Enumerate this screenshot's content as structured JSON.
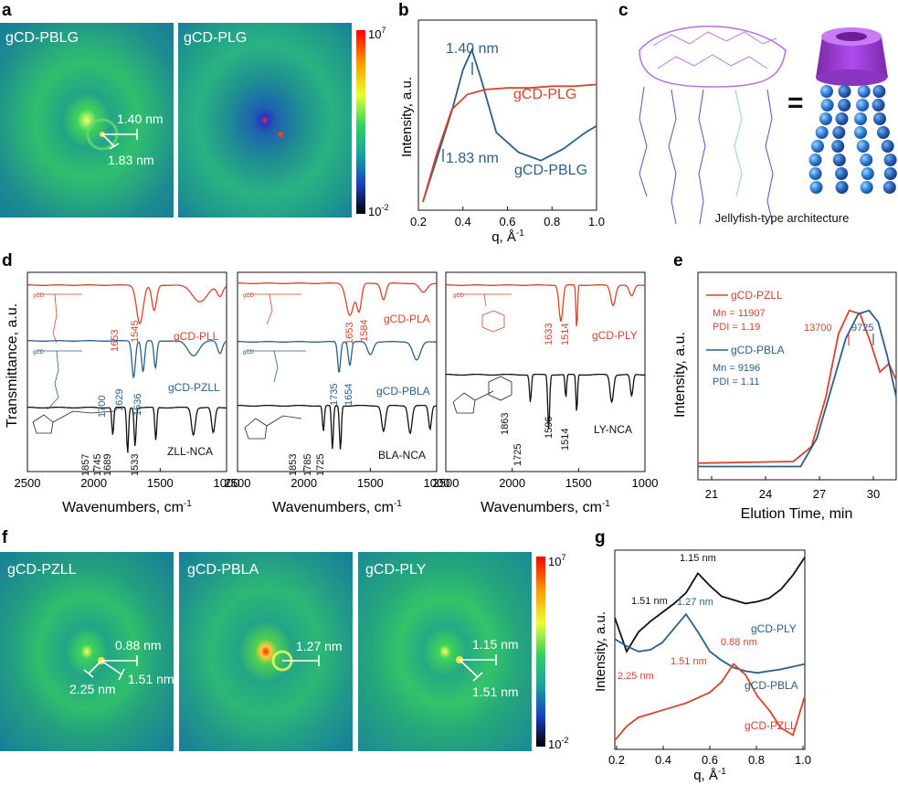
{
  "panels": {
    "a": {
      "letter": "a",
      "images": [
        "gCD-PBLG",
        "gCD-PLG"
      ],
      "annotations": [
        "1.40 nm",
        "1.83 nm"
      ],
      "colorbar": {
        "top": "10",
        "top_exp": "7",
        "bottom": "10",
        "bottom_exp": "-2"
      }
    },
    "b": {
      "letter": "b",
      "ylabel": "Intensity, a.u.",
      "xlabel_main": "q, Å",
      "xlabel_exp": "-1",
      "xticks": [
        "0.2",
        "0.4",
        "0.6",
        "0.8",
        "1.0"
      ],
      "annotations": [
        "1.40 nm",
        "1.83 nm"
      ],
      "series_labels": [
        "gCD-PLG",
        "gCD-PBLG"
      ]
    },
    "c": {
      "letter": "c",
      "equals": "=",
      "caption": "Jellyfish-type architecture"
    },
    "d": {
      "letter": "d",
      "ylabel": "Transmittance, a.u.",
      "xlabel_main": "Wavenumbers, cm",
      "xlabel_exp": "-1",
      "xticks": [
        "2500",
        "2000",
        "1500",
        "1000"
      ],
      "sub1": {
        "labels": [
          "gCD-PLL",
          "gCD-PZLL",
          "ZLL-NCA"
        ],
        "peaks_red": [
          "1653",
          "1545"
        ],
        "peaks_blue": [
          "1700",
          "1629",
          "1536"
        ],
        "peaks_black": [
          "1857",
          "1745",
          "1689",
          "1533"
        ]
      },
      "sub2": {
        "labels": [
          "gCD-PLA",
          "gCD-PBLA",
          "BLA-NCA"
        ],
        "peaks_red": [
          "1653",
          "1584"
        ],
        "peaks_blue": [
          "1735",
          "1654"
        ],
        "peaks_black": [
          "1853",
          "1785",
          "1725"
        ]
      },
      "sub3": {
        "labels": [
          "gCD-PLY",
          "LY-NCA"
        ],
        "peaks_red": [
          "1633",
          "1514"
        ],
        "peaks_black": [
          "1863",
          "1725",
          "1596",
          "1514"
        ]
      }
    },
    "e": {
      "letter": "e",
      "ylabel": "Intensity, a.u.",
      "xlabel": "Elution Time, min",
      "xticks": [
        "21",
        "24",
        "27",
        "30"
      ],
      "legend": [
        {
          "name": "gCD-PZLL",
          "mn": "Mn = 11907",
          "pdi": "PDI = 1.19"
        },
        {
          "name": "gCD-PBLA",
          "mn": "Mn = 9196",
          "pdi": "PDI = 1.11"
        }
      ],
      "peak_labels": [
        "13700",
        "9725"
      ]
    },
    "f": {
      "letter": "f",
      "images": [
        "gCD-PZLL",
        "gCD-PBLA",
        "gCD-PLY"
      ],
      "annotations": {
        "pzll": [
          "0.88 nm",
          "1.51 nm",
          "2.25 nm"
        ],
        "pbla": [
          "1.27 nm"
        ],
        "ply": [
          "1.15 nm",
          "1.51 nm"
        ]
      },
      "colorbar": {
        "top": "10",
        "top_exp": "7",
        "bottom": "10",
        "bottom_exp": "-2"
      }
    },
    "g": {
      "letter": "g",
      "ylabel": "Intensity, a.u.",
      "xlabel_main": "q, Å",
      "xlabel_exp": "-1",
      "xticks": [
        "0.2",
        "0.4",
        "0.6",
        "0.8",
        "1.0"
      ],
      "annotations": [
        "1.15 nm",
        "1.51 nm",
        "1.27 nm",
        "0.88 nm",
        "1.51 nm",
        "2.25 nm"
      ],
      "series_labels": [
        "gCD-PLY",
        "gCD-PBLA",
        "gCD-PZLL"
      ]
    }
  },
  "colors": {
    "red": "#d4452c",
    "blue": "#2b5f8a",
    "black": "#111111",
    "saxs_bg": "#1f9a86",
    "purple": "#9b3fd6"
  },
  "chart_data": [
    {
      "type": "line",
      "panel": "b",
      "xlabel": "q, Å-1",
      "ylabel": "Intensity, a.u.",
      "xlim": [
        0.2,
        1.0
      ],
      "series": [
        {
          "name": "gCD-PBLG",
          "x": [
            0.22,
            0.28,
            0.35,
            0.4,
            0.44,
            0.48,
            0.55,
            0.65,
            0.75,
            0.85,
            0.95,
            1.0
          ],
          "y": [
            0.0,
            0.25,
            0.55,
            0.8,
            0.92,
            0.75,
            0.42,
            0.3,
            0.25,
            0.32,
            0.42,
            0.46
          ]
        },
        {
          "name": "gCD-PLG",
          "x": [
            0.22,
            0.28,
            0.35,
            0.42,
            0.5,
            0.6,
            0.7,
            0.8,
            0.9,
            1.0
          ],
          "y": [
            0.0,
            0.28,
            0.56,
            0.65,
            0.68,
            0.69,
            0.69,
            0.7,
            0.7,
            0.71
          ]
        }
      ]
    },
    {
      "type": "line",
      "panel": "e",
      "xlabel": "Elution Time, min",
      "ylabel": "Intensity, a.u.",
      "xlim": [
        20.2,
        31.2
      ],
      "series": [
        {
          "name": "gCD-PZLL",
          "x": [
            20.2,
            25.5,
            26.5,
            27.3,
            28.0,
            28.6,
            29.2,
            29.8,
            30.3,
            30.8,
            31.2
          ],
          "y": [
            0.0,
            0.01,
            0.1,
            0.4,
            0.78,
            0.92,
            0.9,
            0.72,
            0.55,
            0.6,
            0.5
          ]
        },
        {
          "name": "gCD-PBLA",
          "x": [
            20.2,
            25.9,
            26.8,
            27.6,
            28.4,
            29.1,
            29.7,
            30.2,
            30.7,
            31.2
          ],
          "y": [
            -0.02,
            -0.02,
            0.15,
            0.45,
            0.75,
            0.9,
            0.92,
            0.85,
            0.65,
            0.4
          ]
        }
      ]
    },
    {
      "type": "line",
      "panel": "g",
      "xlabel": "q, Å-1",
      "ylabel": "Intensity, a.u.",
      "xlim": [
        0.2,
        1.0
      ],
      "series": [
        {
          "name": "gCD-PLY",
          "x": [
            0.2,
            0.25,
            0.3,
            0.35,
            0.4,
            0.45,
            0.5,
            0.55,
            0.6,
            0.65,
            0.7,
            0.75,
            0.8,
            0.85,
            0.9,
            0.95,
            1.0
          ],
          "y": [
            0.74,
            0.55,
            0.66,
            0.72,
            0.77,
            0.82,
            0.88,
            0.99,
            0.92,
            0.86,
            0.84,
            0.82,
            0.83,
            0.85,
            0.9,
            0.98,
            1.08
          ]
        },
        {
          "name": "gCD-PBLA",
          "x": [
            0.2,
            0.25,
            0.3,
            0.35,
            0.4,
            0.45,
            0.5,
            0.55,
            0.6,
            0.65,
            0.7,
            0.75,
            0.8,
            0.9,
            1.0
          ],
          "y": [
            0.62,
            0.58,
            0.55,
            0.56,
            0.6,
            0.68,
            0.76,
            0.66,
            0.55,
            0.5,
            0.46,
            0.44,
            0.43,
            0.45,
            0.48
          ]
        },
        {
          "name": "gCD-PZLL",
          "x": [
            0.2,
            0.25,
            0.3,
            0.35,
            0.4,
            0.45,
            0.5,
            0.55,
            0.6,
            0.65,
            0.7,
            0.75,
            0.8,
            0.85,
            0.9,
            0.95,
            1.0
          ],
          "y": [
            0.05,
            0.13,
            0.18,
            0.2,
            0.22,
            0.24,
            0.26,
            0.29,
            0.32,
            0.38,
            0.48,
            0.42,
            0.3,
            0.22,
            0.12,
            0.08,
            0.3
          ]
        }
      ]
    }
  ]
}
